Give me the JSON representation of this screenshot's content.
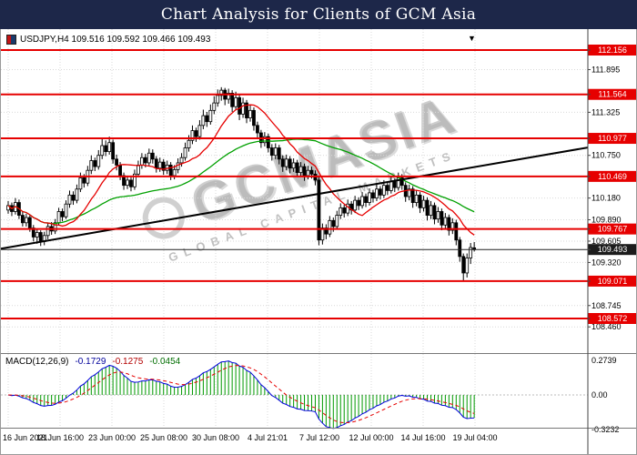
{
  "title_bar": {
    "text": "Chart Analysis for Clients of GCM Asia"
  },
  "symbol_line": {
    "text": "USDJPY,H4 109.516 109.592 109.466 109.493"
  },
  "watermark": {
    "main": "GCMASIA",
    "sub": "GLOBAL CAPITAL MARKETS"
  },
  "macd_header": {
    "label": "MACD(12,26,9)",
    "values": [
      "-0.1729",
      "-0.1275",
      "-0.0454"
    ]
  },
  "shift_marker": {
    "glyph": "▼"
  },
  "colors": {
    "title_bg": "#1d2749",
    "level_line": "#e60000",
    "badge_current": "#1c1c1c",
    "ma_fast": "#e60000",
    "ma_slow": "#00a000",
    "macd_line": "#0000dd",
    "macd_signal": "#e60000",
    "macd_hist": "#009900",
    "trend": "#000000",
    "grid": "#d9d9d9",
    "candle": "#000000"
  },
  "chart_data": {
    "type": "candlestick",
    "symbol": "USDJPY",
    "timeframe": "H4",
    "current_bar": {
      "open": 109.516,
      "high": 109.592,
      "low": 109.466,
      "close": 109.493
    },
    "current_price": 109.493,
    "levels": [
      112.156,
      111.564,
      110.977,
      110.469,
      109.767,
      109.071,
      108.572
    ],
    "scale_labels": [
      111.895,
      111.325,
      110.75,
      110.18,
      109.89,
      109.605,
      109.32,
      108.745,
      108.46
    ],
    "time_labels": [
      "16 Jun 2021",
      "18 Jun 16:00",
      "23 Jun 00:00",
      "25 Jun 08:00",
      "30 Jun 08:00",
      "4 Jul 21:01",
      "7 Jul 12:00",
      "12 Jul 00:00",
      "14 Jul 16:00",
      "19 Jul 04:00"
    ],
    "trendline": {
      "price_left": 109.505,
      "price_right": 110.855
    },
    "ma_fast": {
      "period": 13
    },
    "ma_slow": {
      "period": 45
    },
    "macd": {
      "params": "12,26,9",
      "axis_labels": [
        "0.2739",
        "0.00",
        "-0.3232"
      ]
    },
    "candles": [
      [
        110.02,
        110.14,
        109.97,
        110.08
      ],
      [
        110.08,
        110.12,
        109.94,
        110.0
      ],
      [
        110.0,
        110.18,
        109.96,
        110.12
      ],
      [
        110.12,
        110.16,
        109.9,
        109.95
      ],
      [
        109.95,
        110.0,
        109.8,
        109.85
      ],
      [
        109.85,
        109.97,
        109.8,
        109.92
      ],
      [
        109.92,
        109.95,
        109.73,
        109.78
      ],
      [
        109.78,
        109.82,
        109.6,
        109.66
      ],
      [
        109.66,
        109.77,
        109.57,
        109.72
      ],
      [
        109.72,
        109.75,
        109.54,
        109.6
      ],
      [
        109.6,
        109.73,
        109.55,
        109.68
      ],
      [
        109.68,
        109.85,
        109.63,
        109.8
      ],
      [
        109.8,
        109.86,
        109.69,
        109.74
      ],
      [
        109.74,
        109.9,
        109.7,
        109.85
      ],
      [
        109.85,
        110.05,
        109.81,
        110.0
      ],
      [
        110.0,
        110.04,
        109.87,
        109.93
      ],
      [
        109.93,
        110.15,
        109.9,
        110.1
      ],
      [
        110.1,
        110.28,
        110.05,
        110.22
      ],
      [
        110.22,
        110.27,
        110.09,
        110.15
      ],
      [
        110.15,
        110.36,
        110.11,
        110.3
      ],
      [
        110.3,
        110.52,
        110.26,
        110.45
      ],
      [
        110.45,
        110.5,
        110.32,
        110.38
      ],
      [
        110.38,
        110.61,
        110.34,
        110.55
      ],
      [
        110.55,
        110.75,
        110.5,
        110.68
      ],
      [
        110.68,
        110.72,
        110.54,
        110.6
      ],
      [
        110.6,
        110.82,
        110.56,
        110.75
      ],
      [
        110.75,
        110.97,
        110.7,
        110.88
      ],
      [
        110.88,
        110.95,
        110.74,
        110.8
      ],
      [
        110.8,
        111.0,
        110.76,
        110.92
      ],
      [
        110.92,
        110.96,
        110.64,
        110.7
      ],
      [
        110.7,
        110.76,
        110.55,
        110.62
      ],
      [
        110.62,
        110.66,
        110.42,
        110.48
      ],
      [
        110.48,
        110.52,
        110.29,
        110.35
      ],
      [
        110.35,
        110.48,
        110.3,
        110.42
      ],
      [
        110.42,
        110.46,
        110.27,
        110.33
      ],
      [
        110.33,
        110.56,
        110.29,
        110.5
      ],
      [
        110.5,
        110.68,
        110.46,
        110.62
      ],
      [
        110.62,
        110.78,
        110.57,
        110.72
      ],
      [
        110.72,
        110.77,
        110.59,
        110.65
      ],
      [
        110.65,
        110.84,
        110.61,
        110.78
      ],
      [
        110.78,
        110.83,
        110.64,
        110.7
      ],
      [
        110.7,
        110.74,
        110.52,
        110.58
      ],
      [
        110.58,
        110.72,
        110.53,
        110.66
      ],
      [
        110.66,
        110.7,
        110.49,
        110.55
      ],
      [
        110.55,
        110.68,
        110.5,
        110.62
      ],
      [
        110.62,
        110.66,
        110.42,
        110.48
      ],
      [
        110.48,
        110.62,
        110.43,
        110.56
      ],
      [
        110.56,
        110.71,
        110.51,
        110.65
      ],
      [
        110.65,
        110.78,
        110.6,
        110.72
      ],
      [
        110.72,
        110.92,
        110.68,
        110.85
      ],
      [
        110.85,
        111.02,
        110.8,
        110.95
      ],
      [
        110.95,
        111.15,
        110.9,
        111.08
      ],
      [
        111.08,
        111.12,
        110.93,
        111.0
      ],
      [
        111.0,
        111.22,
        110.96,
        111.15
      ],
      [
        111.15,
        111.36,
        111.1,
        111.28
      ],
      [
        111.28,
        111.33,
        111.13,
        111.2
      ],
      [
        111.2,
        111.43,
        111.16,
        111.35
      ],
      [
        111.35,
        111.54,
        111.3,
        111.45
      ],
      [
        111.45,
        111.63,
        111.4,
        111.55
      ],
      [
        111.55,
        111.66,
        111.48,
        111.62
      ],
      [
        111.62,
        111.65,
        111.42,
        111.5
      ],
      [
        111.5,
        111.64,
        111.44,
        111.58
      ],
      [
        111.58,
        111.62,
        111.33,
        111.4
      ],
      [
        111.4,
        111.6,
        111.35,
        111.52
      ],
      [
        111.52,
        111.56,
        111.22,
        111.3
      ],
      [
        111.3,
        111.52,
        111.25,
        111.45
      ],
      [
        111.45,
        111.49,
        111.18,
        111.25
      ],
      [
        111.25,
        111.42,
        111.2,
        111.35
      ],
      [
        111.35,
        111.39,
        111.08,
        111.15
      ],
      [
        111.15,
        111.2,
        110.98,
        111.05
      ],
      [
        111.05,
        111.09,
        110.85,
        110.92
      ],
      [
        110.92,
        111.06,
        110.87,
        111.0
      ],
      [
        111.0,
        111.04,
        110.79,
        110.85
      ],
      [
        110.85,
        110.9,
        110.68,
        110.75
      ],
      [
        110.75,
        110.91,
        110.7,
        110.85
      ],
      [
        110.85,
        110.89,
        110.63,
        110.7
      ],
      [
        110.7,
        110.75,
        110.53,
        110.6
      ],
      [
        110.6,
        110.76,
        110.55,
        110.7
      ],
      [
        110.7,
        110.74,
        110.51,
        110.58
      ],
      [
        110.58,
        110.71,
        110.53,
        110.65
      ],
      [
        110.65,
        110.69,
        110.46,
        110.52
      ],
      [
        110.52,
        110.66,
        110.47,
        110.6
      ],
      [
        110.6,
        110.64,
        110.41,
        110.48
      ],
      [
        110.48,
        110.61,
        110.43,
        110.55
      ],
      [
        110.55,
        110.6,
        110.44,
        110.5
      ],
      [
        110.5,
        110.55,
        110.35,
        110.42
      ],
      [
        110.42,
        110.46,
        109.55,
        109.62
      ],
      [
        109.62,
        109.84,
        109.56,
        109.78
      ],
      [
        109.78,
        109.83,
        109.63,
        109.7
      ],
      [
        109.7,
        109.94,
        109.66,
        109.88
      ],
      [
        109.88,
        109.92,
        109.73,
        109.8
      ],
      [
        109.8,
        110.01,
        109.76,
        109.95
      ],
      [
        109.95,
        110.11,
        109.9,
        110.05
      ],
      [
        110.05,
        110.09,
        109.92,
        109.98
      ],
      [
        109.98,
        110.16,
        109.94,
        110.1
      ],
      [
        110.1,
        110.14,
        109.96,
        110.02
      ],
      [
        110.02,
        110.21,
        109.98,
        110.15
      ],
      [
        110.15,
        110.19,
        110.02,
        110.08
      ],
      [
        110.08,
        110.26,
        110.04,
        110.2
      ],
      [
        110.2,
        110.24,
        110.06,
        110.12
      ],
      [
        110.12,
        110.31,
        110.08,
        110.25
      ],
      [
        110.25,
        110.29,
        110.12,
        110.18
      ],
      [
        110.18,
        110.36,
        110.14,
        110.3
      ],
      [
        110.3,
        110.34,
        110.16,
        110.22
      ],
      [
        110.22,
        110.42,
        110.18,
        110.35
      ],
      [
        110.35,
        110.39,
        110.22,
        110.28
      ],
      [
        110.28,
        110.47,
        110.24,
        110.4
      ],
      [
        110.4,
        110.44,
        110.26,
        110.32
      ],
      [
        110.32,
        110.52,
        110.28,
        110.45
      ],
      [
        110.45,
        110.5,
        110.29,
        110.35
      ],
      [
        110.35,
        110.39,
        110.13,
        110.2
      ],
      [
        110.2,
        110.36,
        110.15,
        110.3
      ],
      [
        110.3,
        110.34,
        110.05,
        110.12
      ],
      [
        110.12,
        110.28,
        110.07,
        110.22
      ],
      [
        110.22,
        110.26,
        109.98,
        110.05
      ],
      [
        110.05,
        110.21,
        110.0,
        110.15
      ],
      [
        110.15,
        110.19,
        109.88,
        109.95
      ],
      [
        109.95,
        110.14,
        109.9,
        110.08
      ],
      [
        110.08,
        110.12,
        109.83,
        109.9
      ],
      [
        109.9,
        110.06,
        109.85,
        110.0
      ],
      [
        110.0,
        110.04,
        109.75,
        109.82
      ],
      [
        109.82,
        109.98,
        109.77,
        109.92
      ],
      [
        109.92,
        109.96,
        109.68,
        109.75
      ],
      [
        109.75,
        109.91,
        109.7,
        109.85
      ],
      [
        109.85,
        109.89,
        109.55,
        109.62
      ],
      [
        109.62,
        109.66,
        109.33,
        109.4
      ],
      [
        109.4,
        109.44,
        109.07,
        109.18
      ],
      [
        109.18,
        109.44,
        109.12,
        109.38
      ],
      [
        109.38,
        109.58,
        109.3,
        109.52
      ],
      [
        109.516,
        109.592,
        109.466,
        109.493
      ]
    ]
  }
}
